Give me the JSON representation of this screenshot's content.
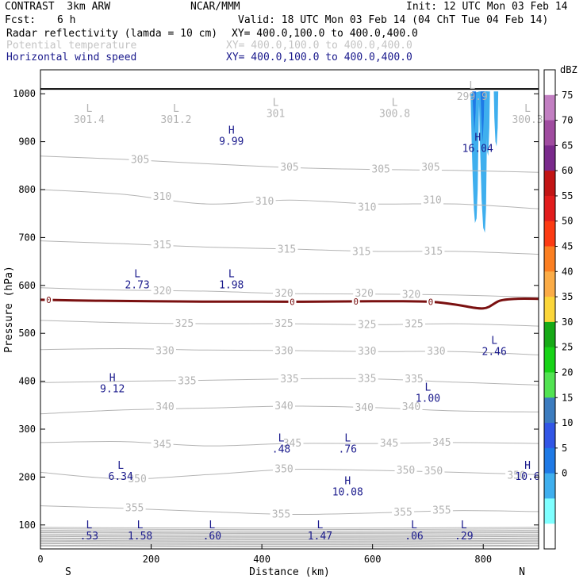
{
  "header": {
    "model": "CONTRAST  3km ARW",
    "org": "NCAR/MMM",
    "init": "Init: 12 UTC Mon 03 Feb 14",
    "fcst_label": "Fcst:",
    "fcst_value": "6 h",
    "valid": "Valid: 18 UTC Mon 03 Feb 14 (04 ChT Tue 04 Feb 14)",
    "field1": "Radar reflectivity (lamda = 10 cm)",
    "field1_xy": "XY= 400.0,100.0 to 400.0,400.0",
    "field2": "Potential temperature",
    "field2_xy": "XY= 400.0,100.0 to 400.0,400.0",
    "field3": "Horizontal wind speed",
    "field3_xy": "XY= 400.0,100.0 to 400.0,400.0"
  },
  "chart_data": {
    "type": "cross-section",
    "xlabel": "Distance (km)",
    "ylabel": "Pressure (hPa)",
    "xlim": [
      0,
      900
    ],
    "ylim": [
      1050,
      50
    ],
    "x_ticks": [
      0,
      200,
      400,
      600,
      800
    ],
    "y_ticks": [
      100,
      200,
      300,
      400,
      500,
      600,
      700,
      800,
      900,
      1000
    ],
    "x_end_labels": {
      "left": "S",
      "right": "N"
    },
    "colors": {
      "theta": "#b4b4b4",
      "freezing": "#7a1010",
      "wind": "#1a1a8c",
      "ground": "#000000"
    },
    "theta_contours": [
      {
        "value": 305,
        "points": [
          [
            0,
            870
          ],
          [
            150,
            863
          ],
          [
            300,
            854
          ],
          [
            450,
            846
          ],
          [
            600,
            842
          ],
          [
            750,
            840
          ],
          [
            900,
            836
          ]
        ],
        "labels": [
          {
            "text": "305",
            "x": 180,
            "p": 862
          },
          {
            "text": "305",
            "x": 450,
            "p": 846
          },
          {
            "text": "305",
            "x": 615,
            "p": 842
          },
          {
            "text": "305",
            "x": 705,
            "p": 846
          }
        ]
      },
      {
        "value": 310,
        "points": [
          [
            0,
            800
          ],
          [
            150,
            790
          ],
          [
            300,
            770
          ],
          [
            450,
            778
          ],
          [
            600,
            770
          ],
          [
            750,
            770
          ],
          [
            900,
            760
          ]
        ],
        "labels": [
          {
            "text": "310",
            "x": 220,
            "p": 785
          },
          {
            "text": "310",
            "x": 405,
            "p": 775
          },
          {
            "text": "310",
            "x": 590,
            "p": 763
          },
          {
            "text": "310",
            "x": 708,
            "p": 778
          }
        ]
      },
      {
        "value": 315,
        "points": [
          [
            0,
            693
          ],
          [
            150,
            687
          ],
          [
            300,
            680
          ],
          [
            450,
            676
          ],
          [
            600,
            671
          ],
          [
            750,
            671
          ],
          [
            900,
            665
          ]
        ],
        "labels": [
          {
            "text": "315",
            "x": 220,
            "p": 684
          },
          {
            "text": "315",
            "x": 445,
            "p": 675
          },
          {
            "text": "315",
            "x": 580,
            "p": 670
          },
          {
            "text": "315",
            "x": 710,
            "p": 671
          }
        ]
      },
      {
        "value": 320,
        "points": [
          [
            0,
            595
          ],
          [
            150,
            590
          ],
          [
            300,
            588
          ],
          [
            450,
            583
          ],
          [
            600,
            582
          ],
          [
            750,
            580
          ],
          [
            900,
            575
          ]
        ],
        "labels": [
          {
            "text": "320",
            "x": 220,
            "p": 588
          },
          {
            "text": "320",
            "x": 440,
            "p": 583
          },
          {
            "text": "320",
            "x": 585,
            "p": 583
          },
          {
            "text": "320",
            "x": 670,
            "p": 581
          }
        ]
      },
      {
        "value": 325,
        "points": [
          [
            0,
            527
          ],
          [
            150,
            522
          ],
          [
            300,
            520
          ],
          [
            450,
            520
          ],
          [
            600,
            518
          ],
          [
            750,
            520
          ],
          [
            900,
            515
          ]
        ],
        "labels": [
          {
            "text": "325",
            "x": 260,
            "p": 520
          },
          {
            "text": "325",
            "x": 440,
            "p": 520
          },
          {
            "text": "325",
            "x": 590,
            "p": 518
          },
          {
            "text": "325",
            "x": 675,
            "p": 519
          }
        ]
      },
      {
        "value": 330,
        "points": [
          [
            0,
            466
          ],
          [
            150,
            468
          ],
          [
            300,
            465
          ],
          [
            450,
            464
          ],
          [
            600,
            462
          ],
          [
            750,
            462
          ],
          [
            900,
            455
          ]
        ],
        "labels": [
          {
            "text": "330",
            "x": 225,
            "p": 463
          },
          {
            "text": "330",
            "x": 440,
            "p": 463
          },
          {
            "text": "330",
            "x": 590,
            "p": 462
          },
          {
            "text": "330",
            "x": 715,
            "p": 462
          }
        ]
      },
      {
        "value": 335,
        "points": [
          [
            0,
            397
          ],
          [
            150,
            400
          ],
          [
            300,
            402
          ],
          [
            450,
            405
          ],
          [
            600,
            405
          ],
          [
            750,
            398
          ],
          [
            900,
            392
          ]
        ],
        "labels": [
          {
            "text": "335",
            "x": 265,
            "p": 400
          },
          {
            "text": "335",
            "x": 450,
            "p": 404
          },
          {
            "text": "335",
            "x": 590,
            "p": 405
          },
          {
            "text": "335",
            "x": 675,
            "p": 404
          }
        ]
      },
      {
        "value": 340,
        "points": [
          [
            0,
            332
          ],
          [
            150,
            340
          ],
          [
            300,
            344
          ],
          [
            450,
            348
          ],
          [
            600,
            345
          ],
          [
            750,
            338
          ],
          [
            900,
            336
          ]
        ],
        "labels": [
          {
            "text": "340",
            "x": 225,
            "p": 346
          },
          {
            "text": "340",
            "x": 440,
            "p": 348
          },
          {
            "text": "340",
            "x": 585,
            "p": 345
          },
          {
            "text": "340",
            "x": 670,
            "p": 346
          }
        ]
      },
      {
        "value": 345,
        "points": [
          [
            0,
            272
          ],
          [
            150,
            274
          ],
          [
            300,
            265
          ],
          [
            450,
            270
          ],
          [
            600,
            270
          ],
          [
            750,
            272
          ],
          [
            900,
            270
          ]
        ],
        "labels": [
          {
            "text": "345",
            "x": 220,
            "p": 268
          },
          {
            "text": "345",
            "x": 455,
            "p": 270
          },
          {
            "text": "345",
            "x": 630,
            "p": 270
          },
          {
            "text": "345",
            "x": 725,
            "p": 272
          }
        ]
      },
      {
        "value": 350,
        "points": [
          [
            0,
            210
          ],
          [
            150,
            196
          ],
          [
            300,
            205
          ],
          [
            450,
            216
          ],
          [
            600,
            214
          ],
          [
            750,
            210
          ],
          [
            900,
            205
          ]
        ],
        "labels": [
          {
            "text": "350",
            "x": 175,
            "p": 196
          },
          {
            "text": "350",
            "x": 440,
            "p": 216
          },
          {
            "text": "350",
            "x": 660,
            "p": 214
          },
          {
            "text": "350",
            "x": 710,
            "p": 212
          },
          {
            "text": "350",
            "x": 860,
            "p": 203
          }
        ]
      },
      {
        "value": 355,
        "points": [
          [
            0,
            140
          ],
          [
            150,
            135
          ],
          [
            300,
            128
          ],
          [
            450,
            122
          ],
          [
            600,
            125
          ],
          [
            750,
            130
          ],
          [
            900,
            128
          ]
        ],
        "labels": [
          {
            "text": "355",
            "x": 170,
            "p": 135
          },
          {
            "text": "355",
            "x": 435,
            "p": 122
          },
          {
            "text": "355",
            "x": 655,
            "p": 126
          },
          {
            "text": "355",
            "x": 725,
            "p": 130
          }
        ]
      }
    ],
    "stratosphere_lines_p": [
      56,
      58,
      61,
      63,
      66,
      68,
      71,
      73,
      76,
      78,
      81,
      84,
      86,
      89,
      92,
      95
    ],
    "freezing_level": {
      "value": 0,
      "label": "0",
      "points": [
        [
          0,
          570
        ],
        [
          100,
          568
        ],
        [
          200,
          567
        ],
        [
          300,
          566
        ],
        [
          400,
          566
        ],
        [
          500,
          566
        ],
        [
          600,
          567
        ],
        [
          700,
          566
        ],
        [
          750,
          560
        ],
        [
          800,
          552
        ],
        [
          830,
          568
        ],
        [
          860,
          572
        ],
        [
          900,
          572
        ]
      ],
      "label_x": [
        15,
        455,
        570,
        705
      ]
    },
    "wind_extrema": [
      {
        "kind": "L",
        "value": ".53",
        "x": 88,
        "p": 93
      },
      {
        "kind": "L",
        "value": "1.58",
        "x": 180,
        "p": 93
      },
      {
        "kind": "L",
        "value": ".60",
        "x": 310,
        "p": 93
      },
      {
        "kind": "L",
        "value": "1.47",
        "x": 505,
        "p": 93
      },
      {
        "kind": "L",
        "value": ".06",
        "x": 675,
        "p": 93
      },
      {
        "kind": "L",
        "value": ".29",
        "x": 765,
        "p": 93
      },
      {
        "kind": "H",
        "value": "10.08",
        "x": 555,
        "p": 185
      },
      {
        "kind": "L",
        "value": "6.34",
        "x": 145,
        "p": 217
      },
      {
        "kind": "H",
        "value": "10.6",
        "x": 880,
        "p": 217
      },
      {
        "kind": "L",
        "value": ".48",
        "x": 435,
        "p": 274
      },
      {
        "kind": "L",
        "value": ".76",
        "x": 555,
        "p": 274
      },
      {
        "kind": "H",
        "value": "9.12",
        "x": 130,
        "p": 400
      },
      {
        "kind": "L",
        "value": "1.00",
        "x": 700,
        "p": 380
      },
      {
        "kind": "L",
        "value": "2.46",
        "x": 820,
        "p": 478
      },
      {
        "kind": "L",
        "value": "2.73",
        "x": 175,
        "p": 617
      },
      {
        "kind": "L",
        "value": "1.98",
        "x": 345,
        "p": 617
      },
      {
        "kind": "H",
        "value": "9.99",
        "x": 345,
        "p": 917
      },
      {
        "kind": "H",
        "value": "16.04",
        "x": 790,
        "p": 902
      }
    ],
    "theta_extrema": [
      {
        "kind": "L",
        "value": "301.4",
        "x": 88,
        "p": 962
      },
      {
        "kind": "L",
        "value": "301.2",
        "x": 245,
        "p": 962
      },
      {
        "kind": "L",
        "value": "301",
        "x": 425,
        "p": 975
      },
      {
        "kind": "L",
        "value": "300.8",
        "x": 640,
        "p": 975
      },
      {
        "kind": "L",
        "value": "299.9",
        "x": 780,
        "p": 1010
      },
      {
        "kind": "L",
        "value": "300.3",
        "x": 880,
        "p": 962
      }
    ],
    "reflectivity_cells": [
      {
        "points": [
          [
            777,
            1000
          ],
          [
            779,
            900
          ],
          [
            781,
            820
          ],
          [
            783,
            760
          ],
          [
            785,
            730
          ],
          [
            788,
            740
          ],
          [
            790,
            800
          ],
          [
            791,
            880
          ],
          [
            792,
            950
          ],
          [
            793,
            1005
          ]
        ],
        "dbz": 7
      },
      {
        "points": [
          [
            792,
            1005
          ],
          [
            794,
            900
          ],
          [
            797,
            780
          ],
          [
            800,
            720
          ],
          [
            803,
            710
          ],
          [
            805,
            760
          ],
          [
            806,
            850
          ],
          [
            807,
            950
          ],
          [
            808,
            1005
          ]
        ],
        "dbz": 7
      },
      {
        "points": [
          [
            804,
            1005
          ],
          [
            805,
            950
          ],
          [
            807,
            880
          ],
          [
            809,
            870
          ],
          [
            811,
            930
          ],
          [
            812,
            1005
          ]
        ],
        "dbz": 7
      },
      {
        "points": [
          [
            819,
            1005
          ],
          [
            820,
            950
          ],
          [
            822,
            900
          ],
          [
            824,
            890
          ],
          [
            826,
            930
          ],
          [
            827,
            1005
          ]
        ],
        "dbz": 7
      },
      {
        "points": [
          [
            780,
            1005
          ],
          [
            782,
            960
          ],
          [
            784,
            920
          ],
          [
            786,
            960
          ],
          [
            787,
            1005
          ]
        ],
        "dbz": 12
      },
      {
        "points": [
          [
            795,
            1005
          ],
          [
            797,
            940
          ],
          [
            799,
            900
          ],
          [
            801,
            950
          ],
          [
            802,
            1005
          ]
        ],
        "dbz": 12
      }
    ],
    "colorbar": {
      "unit": "dBZ",
      "levels": [
        "75",
        "70",
        "65",
        "60",
        "55",
        "50",
        "45",
        "40",
        "35",
        "30",
        "25",
        "20",
        "15",
        "10",
        "5",
        "0"
      ],
      "colors": [
        "#ffffff",
        "#c27fc2",
        "#a04ca0",
        "#7a2a8c",
        "#c21515",
        "#e21d1d",
        "#fc3b13",
        "#fb7f22",
        "#fbac47",
        "#fbd63a",
        "#17aa17",
        "#17d317",
        "#52e352",
        "#3c7cbf",
        "#3256e6",
        "#1f7ae6",
        "#3fafee",
        "#7fffff",
        "#ffffff"
      ]
    }
  }
}
